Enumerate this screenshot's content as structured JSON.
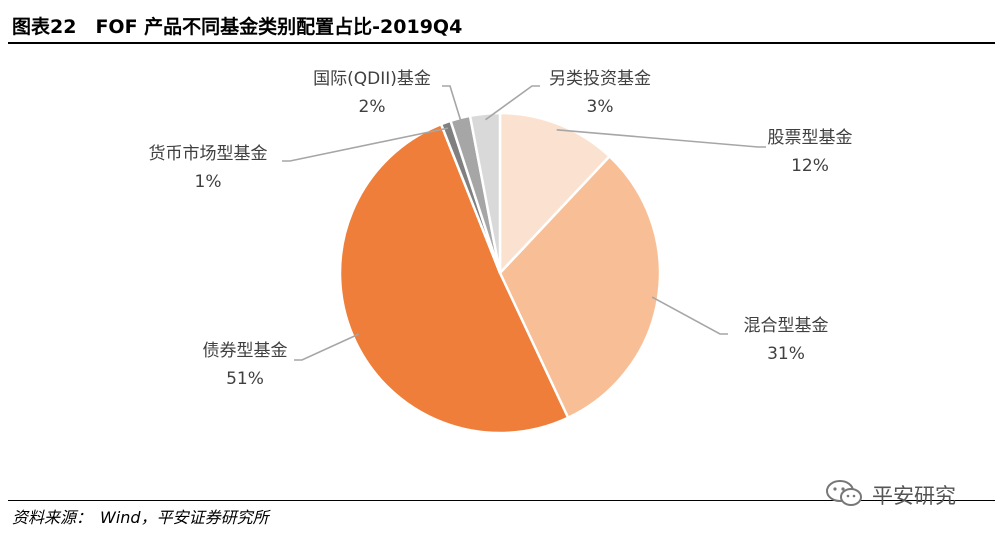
{
  "header": {
    "title": "图表22　FOF 产品不同基金类别配置占比-2019Q4"
  },
  "footer": {
    "source": "资料来源：　Wind，平安证券研究所",
    "watermark": "平安研究"
  },
  "chart_data": {
    "type": "pie",
    "title": "",
    "slices": [
      {
        "name": "股票型基金",
        "value": 12,
        "label": "12%",
        "color": "#FBE2D0"
      },
      {
        "name": "混合型基金",
        "value": 31,
        "label": "31%",
        "color": "#F8BF96"
      },
      {
        "name": "债券型基金",
        "value": 51,
        "label": "51%",
        "color": "#EE7E39"
      },
      {
        "name": "货币市场型基金",
        "value": 1,
        "label": "1%",
        "color": "#808080"
      },
      {
        "name": "国际(QDII)基金",
        "value": 2,
        "label": "2%",
        "color": "#A6A6A6"
      },
      {
        "name": "另类投资基金",
        "value": 3,
        "label": "3%",
        "color": "#D9D9D9"
      }
    ],
    "legend": "none"
  }
}
